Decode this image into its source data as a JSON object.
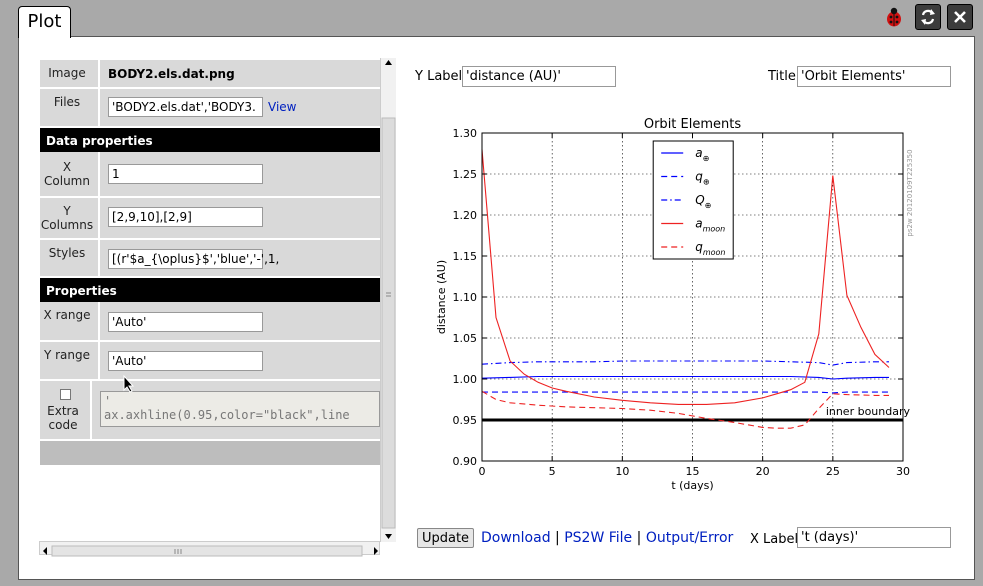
{
  "tab": {
    "label": "Plot"
  },
  "rows": {
    "image": {
      "label": "Image",
      "value": "BODY2.els.dat.png"
    },
    "files": {
      "label": "Files",
      "value": "'BODY2.els.dat','BODY3.",
      "view_link": "View"
    },
    "data_properties": "Data properties",
    "xcol": {
      "label_1": "X",
      "label_2": "Column",
      "value": "1"
    },
    "ycol": {
      "label_1": "Y",
      "label_2": "Columns",
      "value": "[2,9,10],[2,9]"
    },
    "styles": {
      "label": "Styles",
      "value": "[(r'$a_{\\oplus}$','blue','-',1,"
    },
    "properties": "Properties",
    "xrange": {
      "label": "X range",
      "value": "'Auto'"
    },
    "yrange": {
      "label": "Y range",
      "value": "'Auto'"
    },
    "extra": {
      "label_1": "Extra",
      "label_2": "code",
      "line_1": "'",
      "line_2": "ax.axhline(0.95,color=\"black\",line"
    }
  },
  "fields": {
    "ylabel_label": "Y Label:",
    "ylabel_value": "'distance (AU)'",
    "title_label": "Title:",
    "title_value": "'Orbit Elements'",
    "xlabel_label": "X Label:",
    "xlabel_value": "'t (days)'"
  },
  "buttons": {
    "update": "Update"
  },
  "links": {
    "download": "Download",
    "ps2w": "PS2W File",
    "output": "Output/Error",
    "sep": "|"
  },
  "colors": {
    "blue": "#0000ff",
    "red": "#ee2222",
    "section": "#000000",
    "link": "#0020c0"
  },
  "chart_data": {
    "type": "line",
    "title": "Orbit Elements",
    "xlabel": "t (days)",
    "ylabel": "distance (AU)",
    "xlim": [
      0,
      30
    ],
    "ylim": [
      0.9,
      1.3
    ],
    "xticks": [
      0,
      5,
      10,
      15,
      20,
      25,
      30
    ],
    "yticks": [
      0.9,
      0.95,
      1.0,
      1.05,
      1.1,
      1.15,
      1.2,
      1.25,
      1.3
    ],
    "grid": true,
    "legend_position": "top-center",
    "watermark": "ps2w 20120109T225350",
    "annotation": {
      "text": "inner boundary",
      "x": 24.5,
      "y": 0.955
    },
    "hline": {
      "y": 0.95,
      "color": "black"
    },
    "series": [
      {
        "name": "a⊕",
        "label_main": "a",
        "label_sub": "⊕",
        "color": "blue",
        "style": "solid",
        "x": [
          0,
          2,
          4,
          6,
          8,
          10,
          12,
          14,
          16,
          18,
          20,
          22,
          24,
          25,
          26,
          28,
          29
        ],
        "y": [
          1.001,
          1.002,
          1.003,
          1.003,
          1.003,
          1.003,
          1.003,
          1.003,
          1.003,
          1.003,
          1.003,
          1.003,
          1.002,
          1.0,
          1.001,
          1.002,
          1.002
        ]
      },
      {
        "name": "q⊕",
        "label_main": "q",
        "label_sub": "⊕",
        "color": "blue",
        "style": "dashed",
        "x": [
          0,
          2,
          4,
          6,
          8,
          10,
          12,
          14,
          16,
          18,
          20,
          22,
          24,
          25,
          26,
          28,
          29
        ],
        "y": [
          0.984,
          0.984,
          0.984,
          0.984,
          0.984,
          0.984,
          0.984,
          0.984,
          0.984,
          0.984,
          0.984,
          0.984,
          0.984,
          0.983,
          0.984,
          0.984,
          0.984
        ]
      },
      {
        "name": "Q⊕",
        "label_main": "Q",
        "label_sub": "⊕",
        "color": "blue",
        "style": "dashdot",
        "x": [
          0,
          2,
          4,
          6,
          8,
          10,
          12,
          14,
          16,
          18,
          20,
          22,
          24,
          25,
          26,
          28,
          29
        ],
        "y": [
          1.018,
          1.02,
          1.021,
          1.021,
          1.021,
          1.022,
          1.022,
          1.022,
          1.022,
          1.022,
          1.022,
          1.021,
          1.02,
          1.017,
          1.02,
          1.021,
          1.021
        ]
      },
      {
        "name": "a_moon",
        "label_main": "a",
        "label_sub": "moon",
        "color": "red",
        "style": "solid",
        "x": [
          0,
          1,
          2,
          3,
          4,
          5,
          6,
          8,
          10,
          12,
          14,
          16,
          18,
          20,
          21,
          22,
          23,
          24,
          25,
          26,
          27,
          28,
          29
        ],
        "y": [
          1.28,
          1.075,
          1.022,
          1.006,
          0.996,
          0.989,
          0.985,
          0.978,
          0.974,
          0.971,
          0.969,
          0.969,
          0.971,
          0.977,
          0.982,
          0.987,
          0.996,
          1.055,
          1.248,
          1.102,
          1.063,
          1.03,
          1.014
        ]
      },
      {
        "name": "q_moon",
        "label_main": "q",
        "label_sub": "moon",
        "color": "red",
        "style": "dashed",
        "x": [
          0,
          1,
          2,
          4,
          6,
          8,
          10,
          12,
          14,
          16,
          18,
          20,
          21,
          22,
          23,
          24,
          25,
          26,
          28,
          29
        ],
        "y": [
          0.985,
          0.975,
          0.971,
          0.968,
          0.966,
          0.965,
          0.964,
          0.962,
          0.958,
          0.952,
          0.947,
          0.941,
          0.94,
          0.94,
          0.944,
          0.964,
          0.982,
          0.981,
          0.98,
          0.98
        ]
      }
    ]
  }
}
